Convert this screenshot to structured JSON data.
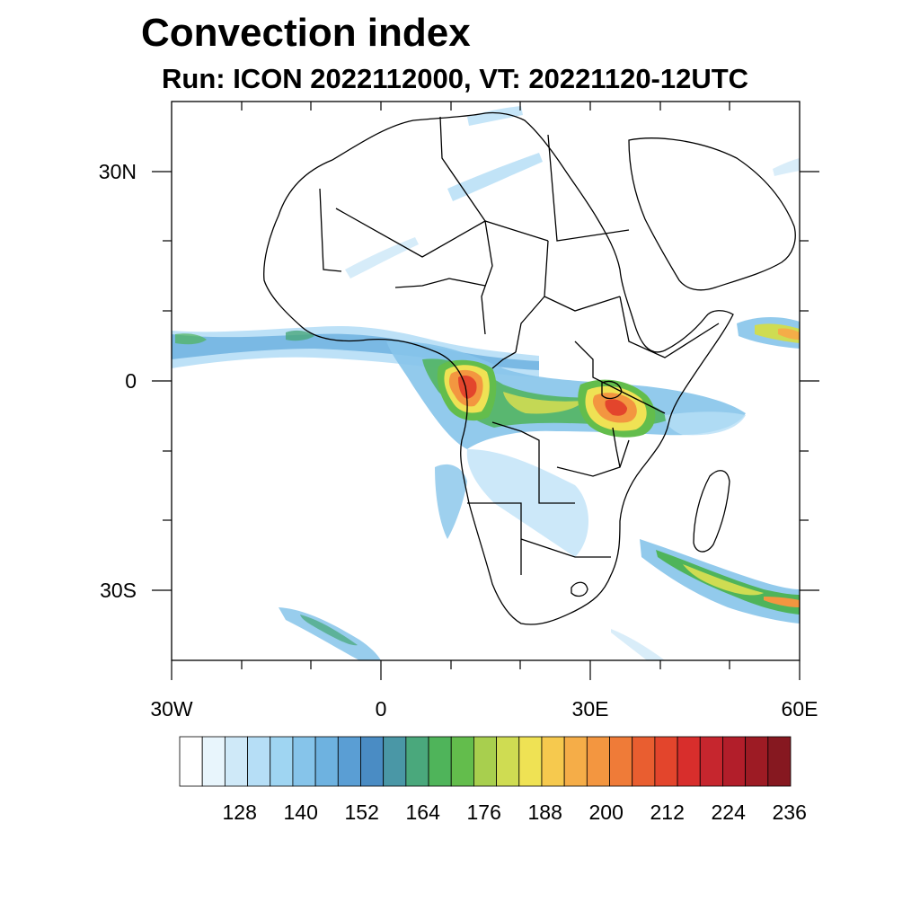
{
  "title": "Convection index",
  "subtitle": "Run: ICON 2022112000,  VT: 20221120-12UTC",
  "map": {
    "extent_lon": [
      -30,
      60
    ],
    "extent_lat": [
      -40,
      40
    ],
    "lon_ticks": [
      {
        "value": -30,
        "label": "30W"
      },
      {
        "value": 0,
        "label": "0"
      },
      {
        "value": 30,
        "label": "30E"
      },
      {
        "value": 60,
        "label": "60E"
      }
    ],
    "lat_ticks": [
      {
        "value": 30,
        "label": "30N"
      },
      {
        "value": 0,
        "label": "0"
      },
      {
        "value": -30,
        "label": "30S"
      }
    ]
  },
  "colorbar": {
    "colors": [
      "#ffffff",
      "#e8f5fc",
      "#cfe9f8",
      "#b6def6",
      "#9fd5f2",
      "#86c4ea",
      "#6eb2e0",
      "#5a9ed4",
      "#4a8cc4",
      "#4a97a6",
      "#4aa87c",
      "#4fb45a",
      "#63bd4c",
      "#a8cf4e",
      "#cfdc52",
      "#efe254",
      "#f6c94e",
      "#f5ad48",
      "#f39640",
      "#ef7b38",
      "#e95e30",
      "#e3452c",
      "#d82e2c",
      "#c6262e",
      "#b21e2a",
      "#9d1b24",
      "#861820"
    ],
    "tick_labels": [
      "128",
      "140",
      "152",
      "164",
      "176",
      "188",
      "200",
      "212",
      "224",
      "236"
    ]
  },
  "chart_data": {
    "type": "heatmap",
    "title": "Convection index",
    "subtitle": "Run: ICON 2022112000,  VT: 20221120-12UTC",
    "variable": "Convection index",
    "run": "ICON 2022112000",
    "valid_time": "20221120-12UTC",
    "colorbar_ticks": [
      128,
      140,
      152,
      164,
      176,
      188,
      200,
      212,
      224,
      236
    ],
    "x_range_lon": [
      -30,
      60
    ],
    "y_range_lat": [
      -40,
      40
    ],
    "features": [
      {
        "name": "ITCZ band West Africa / Atlantic",
        "lon": [
          -30,
          10
        ],
        "lat": [
          0,
          7
        ],
        "approx_value": 150
      },
      {
        "name": "Gabon / Congo core",
        "lon": [
          9,
          15
        ],
        "lat": [
          -4,
          2
        ],
        "approx_value": 215
      },
      {
        "name": "Lake Victoria / Tanzania core",
        "lon": [
          29,
          38
        ],
        "lat": [
          -7,
          0
        ],
        "approx_value": 205
      },
      {
        "name": "Congo basin band",
        "lon": [
          10,
          40
        ],
        "lat": [
          -6,
          2
        ],
        "approx_value": 175
      },
      {
        "name": "Southwest Indian Ocean band",
        "lon": [
          38,
          60
        ],
        "lat": [
          -33,
          -23
        ],
        "approx_value": 175
      },
      {
        "name": "Arabian Sea / Somali coast",
        "lon": [
          50,
          60
        ],
        "lat": [
          5,
          9
        ],
        "approx_value": 175
      },
      {
        "name": "South Atlantic band",
        "lon": [
          -14,
          -1
        ],
        "lat": [
          -40,
          -32
        ],
        "approx_value": 150
      },
      {
        "name": "Sahara/Libya streak",
        "lon": [
          11,
          21
        ],
        "lat": [
          26,
          31
        ],
        "approx_value": 135
      }
    ]
  }
}
